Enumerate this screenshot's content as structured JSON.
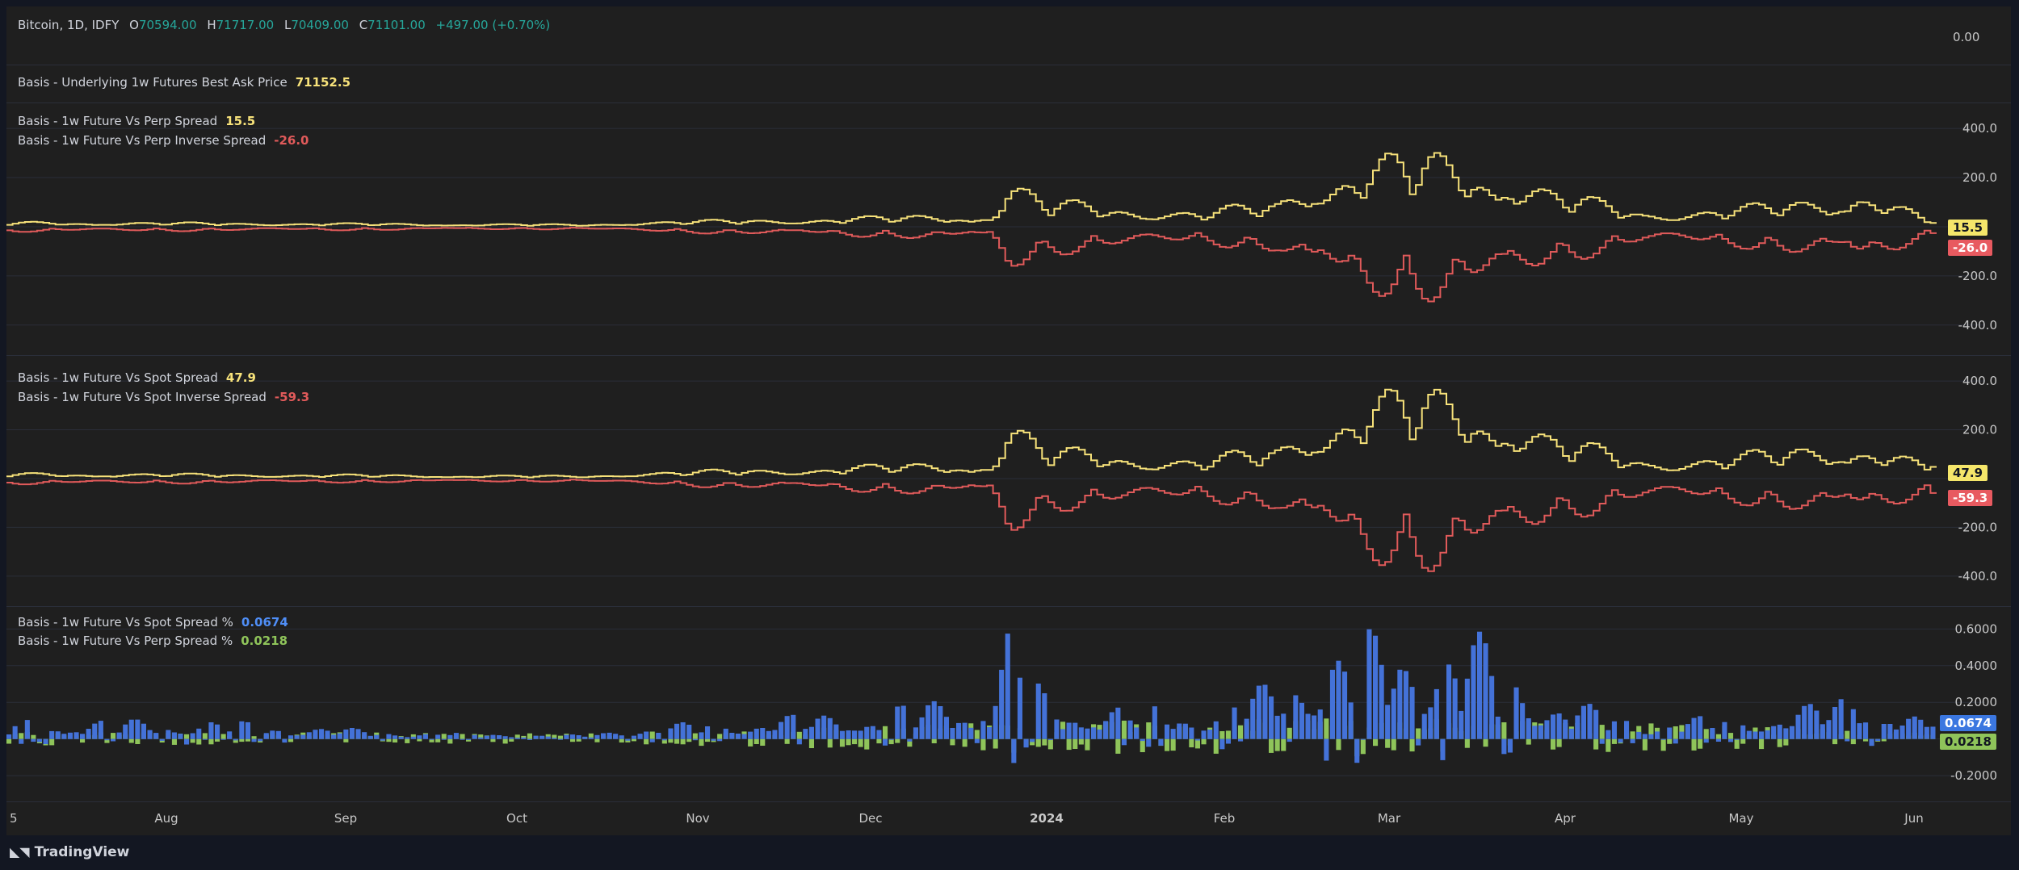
{
  "header": {
    "symbol": "Bitcoin, 1D, IDFY",
    "open_label": "O",
    "open": "70594.00",
    "high_label": "H",
    "high": "71717.00",
    "low_label": "L",
    "low": "70409.00",
    "close_label": "C",
    "close": "71101.00",
    "change": "+497.00 (+0.70%)",
    "axis_value": "0.00"
  },
  "ask_panel": {
    "label": "Basis - Underlying 1w Futures Best Ask Price",
    "value": "71152.5"
  },
  "time_axis": {
    "labels": [
      "5",
      "Aug",
      "Sep",
      "Oct",
      "Nov",
      "Dec",
      "2024",
      "Feb",
      "Mar",
      "Apr",
      "May",
      "Jun"
    ]
  },
  "branding": {
    "logo_text": "TradingView"
  },
  "colors": {
    "yellow": "#f7e27a",
    "red": "#e05a5a",
    "blue": "#4472d8",
    "green": "#8fc45a",
    "tag_yellow": "#f5e66a",
    "tag_red": "#e85a60",
    "tag_blue": "#3b77e0",
    "tag_green": "#8fc45a"
  },
  "chart_data": [
    {
      "type": "line",
      "title": "",
      "y_ticks": [
        "400.0",
        "200.0",
        "-200.0",
        "-400.0"
      ],
      "ylim": [
        -450,
        430
      ],
      "series": [
        {
          "name": "Basis - 1w Future Vs Perp Spread",
          "last_value": "15.5",
          "color": "#f7e27a",
          "profile": [
            [
              0,
              22
            ],
            [
              0.3,
              10
            ],
            [
              0.32,
              20
            ],
            [
              0.45,
              45
            ],
            [
              0.51,
              60
            ],
            [
              0.52,
              210
            ],
            [
              0.54,
              120
            ],
            [
              0.62,
              70
            ],
            [
              0.66,
              120
            ],
            [
              0.68,
              260
            ],
            [
              0.7,
              300
            ],
            [
              0.74,
              330
            ],
            [
              0.77,
              320
            ],
            [
              0.8,
              170
            ],
            [
              0.85,
              70
            ],
            [
              0.9,
              90
            ],
            [
              0.95,
              140
            ],
            [
              0.96,
              210
            ],
            [
              1,
              15
            ]
          ]
        },
        {
          "name": "Basis - 1w Future Vs Perp Inverse Spread",
          "last_value": "-26.0",
          "color": "#e05a5a",
          "profile": [
            [
              0,
              -22
            ],
            [
              0.3,
              -10
            ],
            [
              0.32,
              -20
            ],
            [
              0.45,
              -45
            ],
            [
              0.51,
              -60
            ],
            [
              0.52,
              -210
            ],
            [
              0.54,
              -120
            ],
            [
              0.62,
              -70
            ],
            [
              0.66,
              -120
            ],
            [
              0.68,
              -260
            ],
            [
              0.7,
              -300
            ],
            [
              0.74,
              -320
            ],
            [
              0.77,
              -330
            ],
            [
              0.8,
              -170
            ],
            [
              0.85,
              -70
            ],
            [
              0.9,
              -90
            ],
            [
              0.95,
              -140
            ],
            [
              0.96,
              -200
            ],
            [
              1,
              -26
            ]
          ]
        }
      ]
    },
    {
      "type": "line",
      "title": "",
      "y_ticks": [
        "400.0",
        "200.0",
        "-200.0",
        "-400.0"
      ],
      "ylim": [
        -450,
        430
      ],
      "series": [
        {
          "name": "Basis - 1w Future Vs Spot Spread",
          "last_value": "47.9",
          "color": "#f7e27a",
          "profile": [
            [
              0,
              25
            ],
            [
              0.3,
              12
            ],
            [
              0.32,
              25
            ],
            [
              0.45,
              60
            ],
            [
              0.51,
              80
            ],
            [
              0.52,
              270
            ],
            [
              0.54,
              140
            ],
            [
              0.62,
              90
            ],
            [
              0.66,
              150
            ],
            [
              0.68,
              300
            ],
            [
              0.7,
              370
            ],
            [
              0.74,
              400
            ],
            [
              0.77,
              390
            ],
            [
              0.8,
              200
            ],
            [
              0.85,
              90
            ],
            [
              0.9,
              110
            ],
            [
              0.95,
              170
            ],
            [
              0.96,
              190
            ],
            [
              1,
              48
            ]
          ]
        },
        {
          "name": "Basis - 1w Future Vs Spot Inverse Spread",
          "last_value": "-59.3",
          "color": "#e05a5a",
          "profile": [
            [
              0,
              -25
            ],
            [
              0.3,
              -12
            ],
            [
              0.32,
              -25
            ],
            [
              0.45,
              -60
            ],
            [
              0.51,
              -80
            ],
            [
              0.52,
              -280
            ],
            [
              0.54,
              -140
            ],
            [
              0.62,
              -90
            ],
            [
              0.66,
              -150
            ],
            [
              0.68,
              -300
            ],
            [
              0.7,
              -380
            ],
            [
              0.74,
              -400
            ],
            [
              0.77,
              -390
            ],
            [
              0.8,
              -200
            ],
            [
              0.85,
              -90
            ],
            [
              0.9,
              -110
            ],
            [
              0.95,
              -170
            ],
            [
              0.96,
              -190
            ],
            [
              1,
              -59
            ]
          ]
        }
      ]
    },
    {
      "type": "bar",
      "title": "",
      "y_ticks": [
        "0.6000",
        "0.4000",
        "0.2000",
        "-0.2000"
      ],
      "ylim": [
        -0.27,
        0.65
      ],
      "series": [
        {
          "name": "Basis - 1w Future Vs Spot Spread %",
          "last_value": "0.0674",
          "color": "#4472d8",
          "profile": [
            [
              0,
              0.1
            ],
            [
              0.1,
              0.1
            ],
            [
              0.2,
              0.04
            ],
            [
              0.3,
              0.02
            ],
            [
              0.32,
              0.06
            ],
            [
              0.45,
              0.15
            ],
            [
              0.51,
              0.25
            ],
            [
              0.52,
              0.6
            ],
            [
              0.54,
              0.2
            ],
            [
              0.62,
              0.15
            ],
            [
              0.66,
              0.3
            ],
            [
              0.68,
              0.5
            ],
            [
              0.7,
              0.52
            ],
            [
              0.74,
              0.55
            ],
            [
              0.77,
              0.5
            ],
            [
              0.8,
              0.22
            ],
            [
              0.85,
              0.1
            ],
            [
              0.9,
              0.12
            ],
            [
              0.95,
              0.2
            ],
            [
              0.96,
              0.28
            ],
            [
              1,
              0.07
            ]
          ]
        },
        {
          "name": "Basis - 1w Future Vs Perp Spread %",
          "last_value": "0.0218",
          "color": "#8fc45a",
          "profile": [
            [
              0,
              0.03
            ],
            [
              0.3,
              0.02
            ],
            [
              0.5,
              0.06
            ],
            [
              0.7,
              0.08
            ],
            [
              0.9,
              0.05
            ],
            [
              1,
              0.02
            ]
          ]
        }
      ]
    }
  ]
}
